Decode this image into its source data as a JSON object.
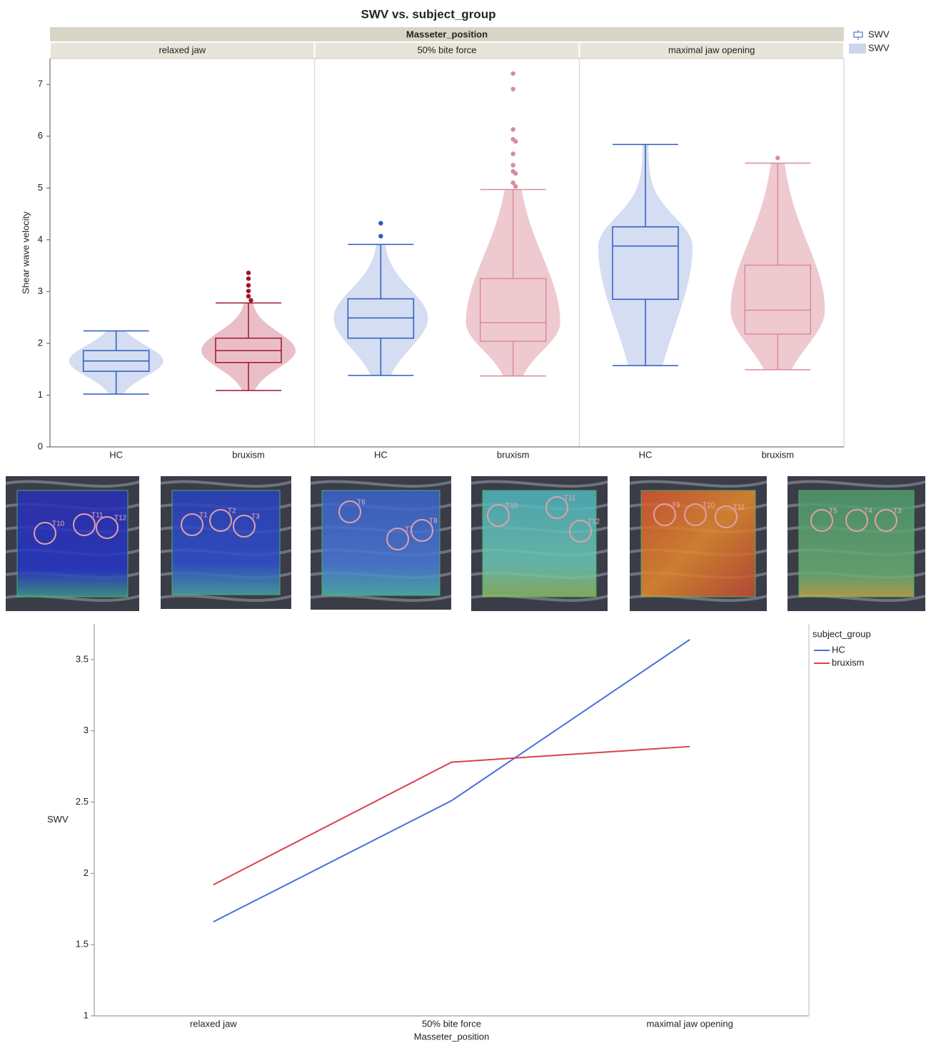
{
  "chart_data": [
    {
      "type": "box",
      "title": "SWV vs. subject_group",
      "facet_title": "Masseter_position",
      "ylabel": "Shear wave velocity",
      "ylim": [
        0,
        7.5
      ],
      "yticks": [
        0,
        1,
        2,
        3,
        4,
        5,
        6,
        7
      ],
      "legend_labels": [
        "SWV",
        "SWV"
      ],
      "panels": [
        {
          "name": "relaxed jaw",
          "groups": [
            {
              "name": "HC",
              "color": "#2a5cbf",
              "fill": "#ccd7ee",
              "min": 1.02,
              "q1": 1.46,
              "median": 1.66,
              "q3": 1.86,
              "max": 2.24,
              "outliers": []
            },
            {
              "name": "bruxism",
              "color": "#a0142c",
              "fill": "#e6b3bd",
              "min": 1.09,
              "q1": 1.63,
              "median": 1.86,
              "q3": 2.1,
              "max": 2.78,
              "outliers": [
                3.36,
                3.25,
                3.12,
                3.01,
                2.91,
                2.83
              ]
            }
          ]
        },
        {
          "name": "50% bite force",
          "groups": [
            {
              "name": "HC",
              "color": "#2a5cbf",
              "fill": "#ccd7ee",
              "min": 1.38,
              "q1": 2.1,
              "median": 2.49,
              "q3": 2.86,
              "max": 3.91,
              "outliers": [
                4.32,
                4.07
              ]
            },
            {
              "name": "bruxism",
              "color": "#d98a9a",
              "fill": "#ecc0c8",
              "min": 1.37,
              "q1": 2.04,
              "median": 2.4,
              "q3": 3.25,
              "max": 4.97,
              "outliers": [
                7.21,
                6.91,
                6.13,
                5.94,
                5.9,
                5.66,
                5.44,
                5.32,
                5.28,
                5.1,
                5.03
              ]
            }
          ]
        },
        {
          "name": "maximal jaw opening",
          "groups": [
            {
              "name": "HC",
              "color": "#2a5cbf",
              "fill": "#ccd7ee",
              "min": 1.57,
              "q1": 2.85,
              "median": 3.88,
              "q3": 4.25,
              "max": 5.84,
              "outliers": []
            },
            {
              "name": "bruxism",
              "color": "#d98a9a",
              "fill": "#ecc0c8",
              "min": 1.49,
              "q1": 2.18,
              "median": 2.64,
              "q3": 3.51,
              "max": 5.48,
              "outliers": [
                5.58
              ]
            }
          ]
        }
      ]
    },
    {
      "type": "line",
      "xlabel": "Masseter_position",
      "ylabel": "SWV",
      "legend_title": "subject_group",
      "categories": [
        "relaxed jaw",
        "50% bite force",
        "maximal jaw opening"
      ],
      "ylim": [
        1,
        3.75
      ],
      "yticks": [
        1,
        1.5,
        2,
        2.5,
        3,
        3.5
      ],
      "series": [
        {
          "name": "HC",
          "color": "#4a6fe0",
          "values": [
            1.66,
            2.51,
            3.64
          ]
        },
        {
          "name": "bruxism",
          "color": "#d9404f",
          "values": [
            1.92,
            2.78,
            2.89
          ]
        }
      ]
    }
  ],
  "images": [
    {
      "labels": [
        "T10",
        "T11",
        "T12"
      ]
    },
    {
      "labels": [
        "T1",
        "T2",
        "T3"
      ]
    },
    {
      "labels": [
        "T6",
        "T7",
        "T8"
      ]
    },
    {
      "labels": [
        "T10",
        "T11",
        "T12"
      ]
    },
    {
      "labels": [
        "T9",
        "T10",
        "T11"
      ]
    },
    {
      "labels": [
        "T5",
        "T4",
        "T3"
      ]
    }
  ]
}
